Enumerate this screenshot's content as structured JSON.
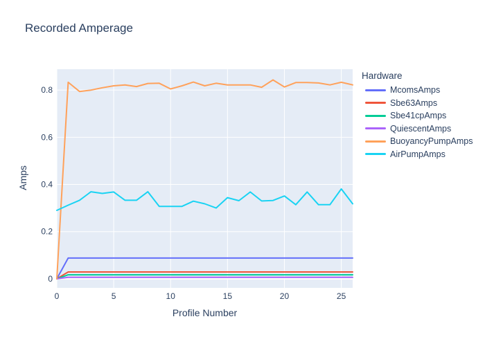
{
  "chart_data": {
    "type": "line",
    "title": "Recorded Amperage",
    "xlabel": "Profile Number",
    "ylabel": "Amps",
    "legend_title": "Hardware",
    "legend_position": "right",
    "grid": true,
    "plot_bg": "#E5ECF6",
    "text_color": "#2a3f5f",
    "x": [
      0,
      1,
      2,
      3,
      4,
      5,
      6,
      7,
      8,
      9,
      10,
      11,
      12,
      13,
      14,
      15,
      16,
      17,
      18,
      19,
      20,
      21,
      22,
      23,
      24,
      25,
      26
    ],
    "xticks": [
      0,
      5,
      10,
      15,
      20,
      25
    ],
    "yticks": [
      0,
      0.2,
      0.4,
      0.6,
      0.8
    ],
    "xlim": [
      0,
      26
    ],
    "ylim": [
      -0.0385,
      0.8885
    ],
    "series": [
      {
        "name": "McomsAmps",
        "color": "#636EFA",
        "values": [
          0,
          0.088,
          0.088,
          0.088,
          0.088,
          0.088,
          0.088,
          0.088,
          0.088,
          0.088,
          0.088,
          0.088,
          0.088,
          0.088,
          0.088,
          0.088,
          0.088,
          0.088,
          0.088,
          0.088,
          0.088,
          0.088,
          0.088,
          0.088,
          0.088,
          0.088,
          0.088
        ]
      },
      {
        "name": "Sbe63Amps",
        "color": "#EF553B",
        "values": [
          0,
          0.029,
          0.029,
          0.029,
          0.029,
          0.029,
          0.029,
          0.029,
          0.029,
          0.029,
          0.029,
          0.029,
          0.029,
          0.029,
          0.029,
          0.029,
          0.029,
          0.029,
          0.029,
          0.029,
          0.029,
          0.029,
          0.029,
          0.029,
          0.029,
          0.029,
          0.029
        ]
      },
      {
        "name": "Sbe41cpAmps",
        "color": "#00CC96",
        "values": [
          0,
          0.017,
          0.017,
          0.017,
          0.017,
          0.017,
          0.017,
          0.017,
          0.017,
          0.017,
          0.017,
          0.017,
          0.017,
          0.017,
          0.017,
          0.017,
          0.017,
          0.017,
          0.017,
          0.017,
          0.017,
          0.017,
          0.017,
          0.017,
          0.017,
          0.017,
          0.017
        ]
      },
      {
        "name": "QuiescentAmps",
        "color": "#AB63FA",
        "values": [
          0,
          0.006,
          0.006,
          0.006,
          0.006,
          0.006,
          0.006,
          0.006,
          0.006,
          0.006,
          0.006,
          0.006,
          0.006,
          0.006,
          0.006,
          0.006,
          0.006,
          0.006,
          0.006,
          0.006,
          0.006,
          0.006,
          0.006,
          0.006,
          0.006,
          0.006,
          0.006
        ]
      },
      {
        "name": "BuoyancyPumpAmps",
        "color": "#FFA15A",
        "values": [
          0,
          0.833,
          0.794,
          0.8,
          0.81,
          0.818,
          0.822,
          0.815,
          0.828,
          0.829,
          0.805,
          0.818,
          0.834,
          0.818,
          0.829,
          0.822,
          0.822,
          0.822,
          0.812,
          0.843,
          0.813,
          0.832,
          0.832,
          0.83,
          0.822,
          0.833,
          0.822
        ]
      },
      {
        "name": "AirPumpAmps",
        "color": "#19D3F3",
        "values": [
          0.29,
          0.312,
          0.333,
          0.369,
          0.362,
          0.368,
          0.333,
          0.333,
          0.369,
          0.307,
          0.307,
          0.307,
          0.329,
          0.318,
          0.3,
          0.344,
          0.331,
          0.368,
          0.33,
          0.332,
          0.351,
          0.314,
          0.368,
          0.314,
          0.314,
          0.381,
          0.318
        ]
      }
    ]
  }
}
